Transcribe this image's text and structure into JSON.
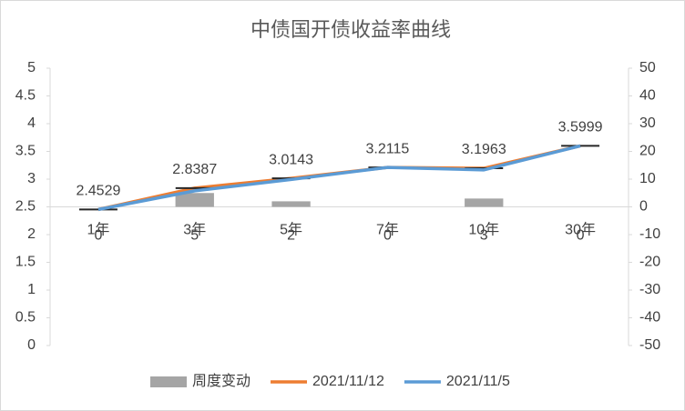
{
  "chart_data": {
    "type": "bar-line",
    "title": "中债国开债收益率曲线",
    "categories": [
      "1年",
      "3年",
      "5年",
      "7年",
      "10年",
      "30年"
    ],
    "series": [
      {
        "name": "周度变动",
        "type": "bar",
        "axis": "y2",
        "color": "#a5a5a5",
        "values": [
          0,
          5,
          2,
          0,
          3,
          0
        ]
      },
      {
        "name": "2021/11/12",
        "type": "line",
        "color": "#ed7d31",
        "values": [
          2.4529,
          2.8387,
          3.0143,
          3.2115,
          3.1963,
          3.5999
        ]
      },
      {
        "name": "2021/11/5",
        "type": "line",
        "color": "#5b9bd5",
        "values": [
          2.4529,
          2.7887,
          2.9943,
          3.2115,
          3.1663,
          3.5999
        ]
      }
    ],
    "ylim": [
      0,
      5
    ],
    "yticks": [
      0,
      0.5,
      1,
      1.5,
      2,
      2.5,
      3,
      3.5,
      4,
      4.5,
      5
    ],
    "y2lim": [
      -50,
      50
    ],
    "y2ticks": [
      -50,
      -40,
      -30,
      -20,
      -10,
      0,
      10,
      20,
      30,
      40,
      50
    ],
    "legend": "bottom"
  }
}
